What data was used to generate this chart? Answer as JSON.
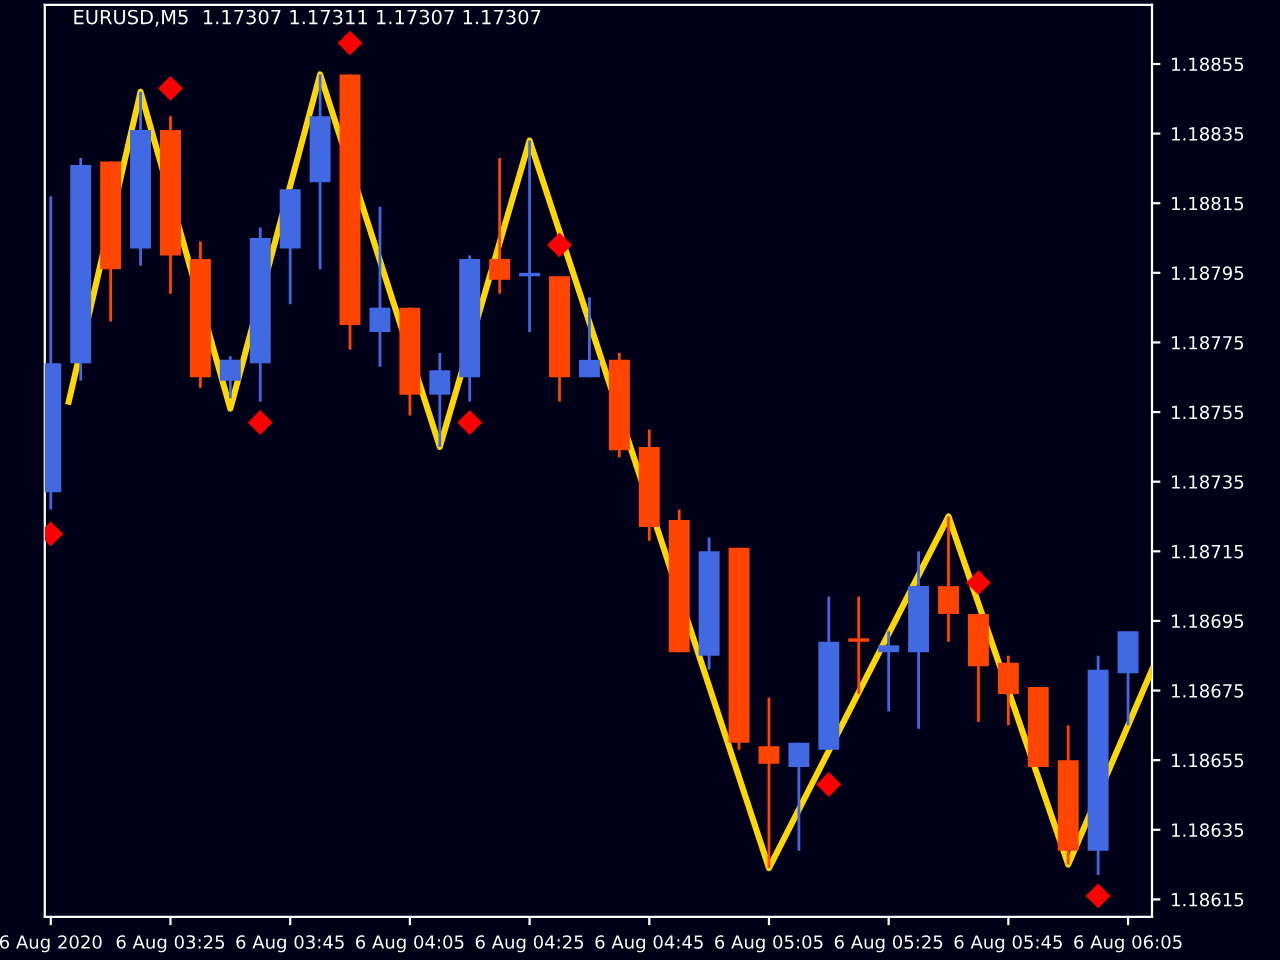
{
  "chart_data": {
    "type": "candlestick",
    "title": "EURUSD,M5  1.17307 1.17311 1.17307 1.17307",
    "x": [
      "2020-08-06T03:05",
      "2020-08-06T03:10",
      "2020-08-06T03:15",
      "2020-08-06T03:20",
      "2020-08-06T03:25",
      "2020-08-06T03:30",
      "2020-08-06T03:35",
      "2020-08-06T03:40",
      "2020-08-06T03:45",
      "2020-08-06T03:50",
      "2020-08-06T03:55",
      "2020-08-06T04:00",
      "2020-08-06T04:05",
      "2020-08-06T04:10",
      "2020-08-06T04:15",
      "2020-08-06T04:20",
      "2020-08-06T04:25",
      "2020-08-06T04:30",
      "2020-08-06T04:35",
      "2020-08-06T04:40",
      "2020-08-06T04:45",
      "2020-08-06T04:50",
      "2020-08-06T04:55",
      "2020-08-06T05:00",
      "2020-08-06T05:05",
      "2020-08-06T05:10",
      "2020-08-06T05:15",
      "2020-08-06T05:20",
      "2020-08-06T05:25",
      "2020-08-06T05:30",
      "2020-08-06T05:35",
      "2020-08-06T05:40",
      "2020-08-06T05:45",
      "2020-08-06T05:50",
      "2020-08-06T05:55",
      "2020-08-06T06:00",
      "2020-08-06T06:05"
    ],
    "ohlc": [
      [
        1.18732,
        1.18817,
        1.18727,
        1.18769
      ],
      [
        1.18769,
        1.18828,
        1.18764,
        1.18826
      ],
      [
        1.18827,
        1.18827,
        1.18781,
        1.18796
      ],
      [
        1.18802,
        1.18847,
        1.18797,
        1.18836
      ],
      [
        1.18836,
        1.1884,
        1.18789,
        1.188
      ],
      [
        1.18799,
        1.18804,
        1.18762,
        1.18765
      ],
      [
        1.18764,
        1.18771,
        1.18759,
        1.1877
      ],
      [
        1.18769,
        1.18808,
        1.18758,
        1.18805
      ],
      [
        1.18802,
        1.18819,
        1.18786,
        1.18819
      ],
      [
        1.18821,
        1.18852,
        1.18796,
        1.1884
      ],
      [
        1.18852,
        1.18852,
        1.18773,
        1.1878
      ],
      [
        1.18778,
        1.18814,
        1.18768,
        1.18785
      ],
      [
        1.18785,
        1.18785,
        1.18754,
        1.1876
      ],
      [
        1.1876,
        1.18772,
        1.18745,
        1.18767
      ],
      [
        1.18765,
        1.188,
        1.18758,
        1.18799
      ],
      [
        1.18799,
        1.18828,
        1.18789,
        1.18793
      ],
      [
        1.18794,
        1.18833,
        1.18778,
        1.18795
      ],
      [
        1.18794,
        1.18794,
        1.18758,
        1.18765
      ],
      [
        1.18765,
        1.18788,
        1.18765,
        1.1877
      ],
      [
        1.1877,
        1.18772,
        1.18742,
        1.18744
      ],
      [
        1.18745,
        1.1875,
        1.18718,
        1.18722
      ],
      [
        1.18724,
        1.18727,
        1.18686,
        1.18686
      ],
      [
        1.18685,
        1.18719,
        1.18681,
        1.18715
      ],
      [
        1.18716,
        1.18716,
        1.18658,
        1.1866
      ],
      [
        1.18659,
        1.18673,
        1.18624,
        1.18654
      ],
      [
        1.18653,
        1.1866,
        1.18629,
        1.1866
      ],
      [
        1.18658,
        1.18702,
        1.18658,
        1.18689
      ],
      [
        1.1869,
        1.18702,
        1.18674,
        1.18689
      ],
      [
        1.18686,
        1.18692,
        1.18669,
        1.18688
      ],
      [
        1.18686,
        1.18715,
        1.18664,
        1.18705
      ],
      [
        1.18705,
        1.18725,
        1.18689,
        1.18697
      ],
      [
        1.18697,
        1.18697,
        1.18666,
        1.18682
      ],
      [
        1.18683,
        1.18685,
        1.18665,
        1.18674
      ],
      [
        1.18676,
        1.18676,
        1.18653,
        1.18653
      ],
      [
        1.18655,
        1.18665,
        1.18625,
        1.18629
      ],
      [
        1.18629,
        1.18685,
        1.18622,
        1.18681
      ],
      [
        1.1868,
        1.18692,
        1.18665,
        1.18692
      ]
    ],
    "colors": [
      "#4169e1",
      "#4169e1",
      "#ff4500",
      "#4169e1",
      "#ff4500",
      "#ff4500",
      "#4169e1",
      "#4169e1",
      "#4169e1",
      "#4169e1",
      "#ff4500",
      "#4169e1",
      "#ff4500",
      "#4169e1",
      "#4169e1",
      "#ff4500",
      "#4169e1",
      "#ff4500",
      "#4169e1",
      "#ff4500",
      "#ff4500",
      "#ff4500",
      "#4169e1",
      "#ff4500",
      "#ff4500",
      "#4169e1",
      "#4169e1",
      "#ff4500",
      "#4169e1",
      "#4169e1",
      "#ff4500",
      "#ff4500",
      "#ff4500",
      "#ff4500",
      "#ff4500",
      "#4169e1",
      "#4169e1"
    ],
    "series": [
      {
        "type": "line",
        "color": "#ffd700",
        "x": [
          "2020-08-06T03:08",
          "2020-08-06T03:20",
          "2020-08-06T03:35",
          "2020-08-06T03:50",
          "2020-08-06T04:10",
          "2020-08-06T04:25",
          "2020-08-06T05:05",
          "2020-08-06T05:35",
          "2020-08-06T05:55",
          "2020-08-06T06:09"
        ],
        "values": [
          1.18758,
          1.18847,
          1.18756,
          1.18852,
          1.18745,
          1.18833,
          1.18624,
          1.18725,
          1.18625,
          1.18681
        ]
      },
      {
        "type": "scatter",
        "color": "#ff0000",
        "marker": "diamond",
        "x": [
          "2020-08-06T03:05",
          "2020-08-06T03:25",
          "2020-08-06T03:40",
          "2020-08-06T03:55",
          "2020-08-06T04:15",
          "2020-08-06T04:30",
          "2020-08-06T05:15",
          "2020-08-06T05:40",
          "2020-08-06T06:00"
        ],
        "values": [
          1.1872,
          1.18848,
          1.18752,
          1.18861,
          1.18752,
          1.18803,
          1.18648,
          1.18706,
          1.18616
        ]
      }
    ],
    "xlim": [
      "2020-08-06T03:04",
      "2020-08-06T06:09"
    ],
    "xticks": [
      {
        "value": "2020-08-06T03:05",
        "label": "6 Aug 2020"
      },
      {
        "value": "2020-08-06T03:25",
        "label": "6 Aug 03:25"
      },
      {
        "value": "2020-08-06T03:45",
        "label": "6 Aug 03:45"
      },
      {
        "value": "2020-08-06T04:05",
        "label": "6 Aug 04:05"
      },
      {
        "value": "2020-08-06T04:25",
        "label": "6 Aug 04:25"
      },
      {
        "value": "2020-08-06T04:45",
        "label": "6 Aug 04:45"
      },
      {
        "value": "2020-08-06T05:05",
        "label": "6 Aug 05:05"
      },
      {
        "value": "2020-08-06T05:25",
        "label": "6 Aug 05:25"
      },
      {
        "value": "2020-08-06T05:45",
        "label": "6 Aug 05:45"
      },
      {
        "value": "2020-08-06T06:05",
        "label": "6 Aug 06:05"
      }
    ],
    "ylim": [
      1.1861,
      1.18872
    ],
    "yticks": [
      1.18615,
      1.18635,
      1.18655,
      1.18675,
      1.18695,
      1.18715,
      1.18735,
      1.18755,
      1.18775,
      1.18795,
      1.18815,
      1.18835,
      1.18855
    ],
    "grid": false,
    "legend": false
  }
}
